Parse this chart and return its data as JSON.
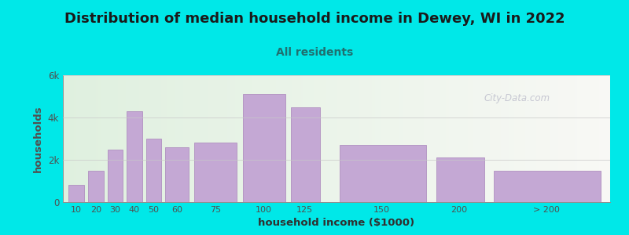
{
  "title": "Distribution of median household income in Dewey, WI in 2022",
  "subtitle": "All residents",
  "xlabel": "household income ($1000)",
  "ylabel": "households",
  "background_outer": "#00e8e8",
  "bar_color": "#c4a8d4",
  "bar_edge_color": "#b090c0",
  "title_fontsize": 13,
  "subtitle_fontsize": 10,
  "subtitle_color": "#207070",
  "ylabel_color": "#505050",
  "xlabel_color": "#303030",
  "tick_color": "#505050",
  "bar_heights": [
    800,
    1500,
    2500,
    4300,
    3000,
    2600,
    2800,
    5100,
    4500,
    2700,
    2100,
    1500
  ],
  "bar_lefts": [
    10,
    20,
    30,
    40,
    50,
    60,
    75,
    100,
    125,
    150,
    200,
    230
  ],
  "bar_rights": [
    18,
    28,
    38,
    48,
    58,
    72,
    97,
    122,
    140,
    195,
    225,
    285
  ],
  "xlim": [
    7,
    290
  ],
  "ylim": [
    0,
    6000
  ],
  "yticks": [
    0,
    2000,
    4000,
    6000
  ],
  "ytick_labels": [
    "0",
    "2k",
    "4k",
    "6k"
  ],
  "xtick_labels": [
    "10",
    "20",
    "30",
    "40",
    "50",
    "60",
    "75",
    "100",
    "125",
    "150",
    "200",
    "> 200"
  ],
  "xtick_positions": [
    14,
    24,
    34,
    44,
    54,
    66,
    86,
    111,
    132,
    172,
    212,
    257
  ],
  "watermark": "City-Data.com",
  "bg_left_color": "#dff0df",
  "bg_right_color": "#f8f8f5"
}
